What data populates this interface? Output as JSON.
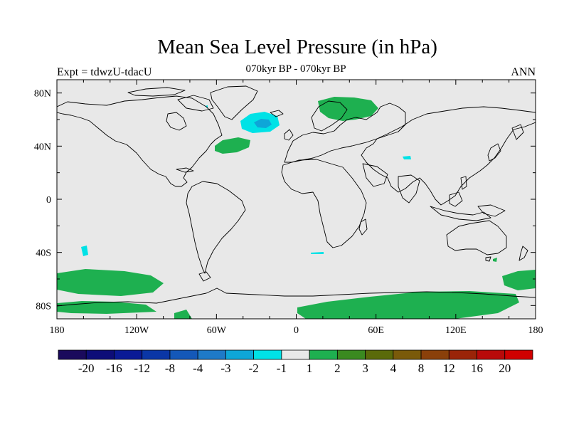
{
  "title": "Mean Sea Level Pressure (in hPa)",
  "subtitle_left": "Expt = tdwzU-tdacU",
  "subtitle_center": "070kyr BP - 070kyr BP",
  "subtitle_right": "ANN",
  "x_ticks": [
    "180",
    "120W",
    "60W",
    "0",
    "60E",
    "120E",
    "180"
  ],
  "y_ticks": [
    "80N",
    "40N",
    "0",
    "40S",
    "80S"
  ],
  "colorbar": {
    "colors": [
      "#1a0a5c",
      "#0d0d78",
      "#0a1a96",
      "#0a36a6",
      "#1458b8",
      "#1e7ac8",
      "#0ea6d8",
      "#00e2e6",
      "#e8e8e8",
      "#1eb050",
      "#3a8a20",
      "#5a6a0a",
      "#7a5a0a",
      "#8a400a",
      "#9a2408",
      "#b80a0a",
      "#d00000"
    ],
    "labels": [
      "-20",
      "-16",
      "-12",
      "-8",
      "-4",
      "-3",
      "-2",
      "-1",
      "1",
      "2",
      "3",
      "4",
      "8",
      "12",
      "16",
      "20"
    ]
  },
  "colors": {
    "ocean_background": "#e8e8e8",
    "positive_anomaly": "#1eb050",
    "negative_weak": "#00e2e6",
    "negative_medium": "#0ea6d8"
  }
}
